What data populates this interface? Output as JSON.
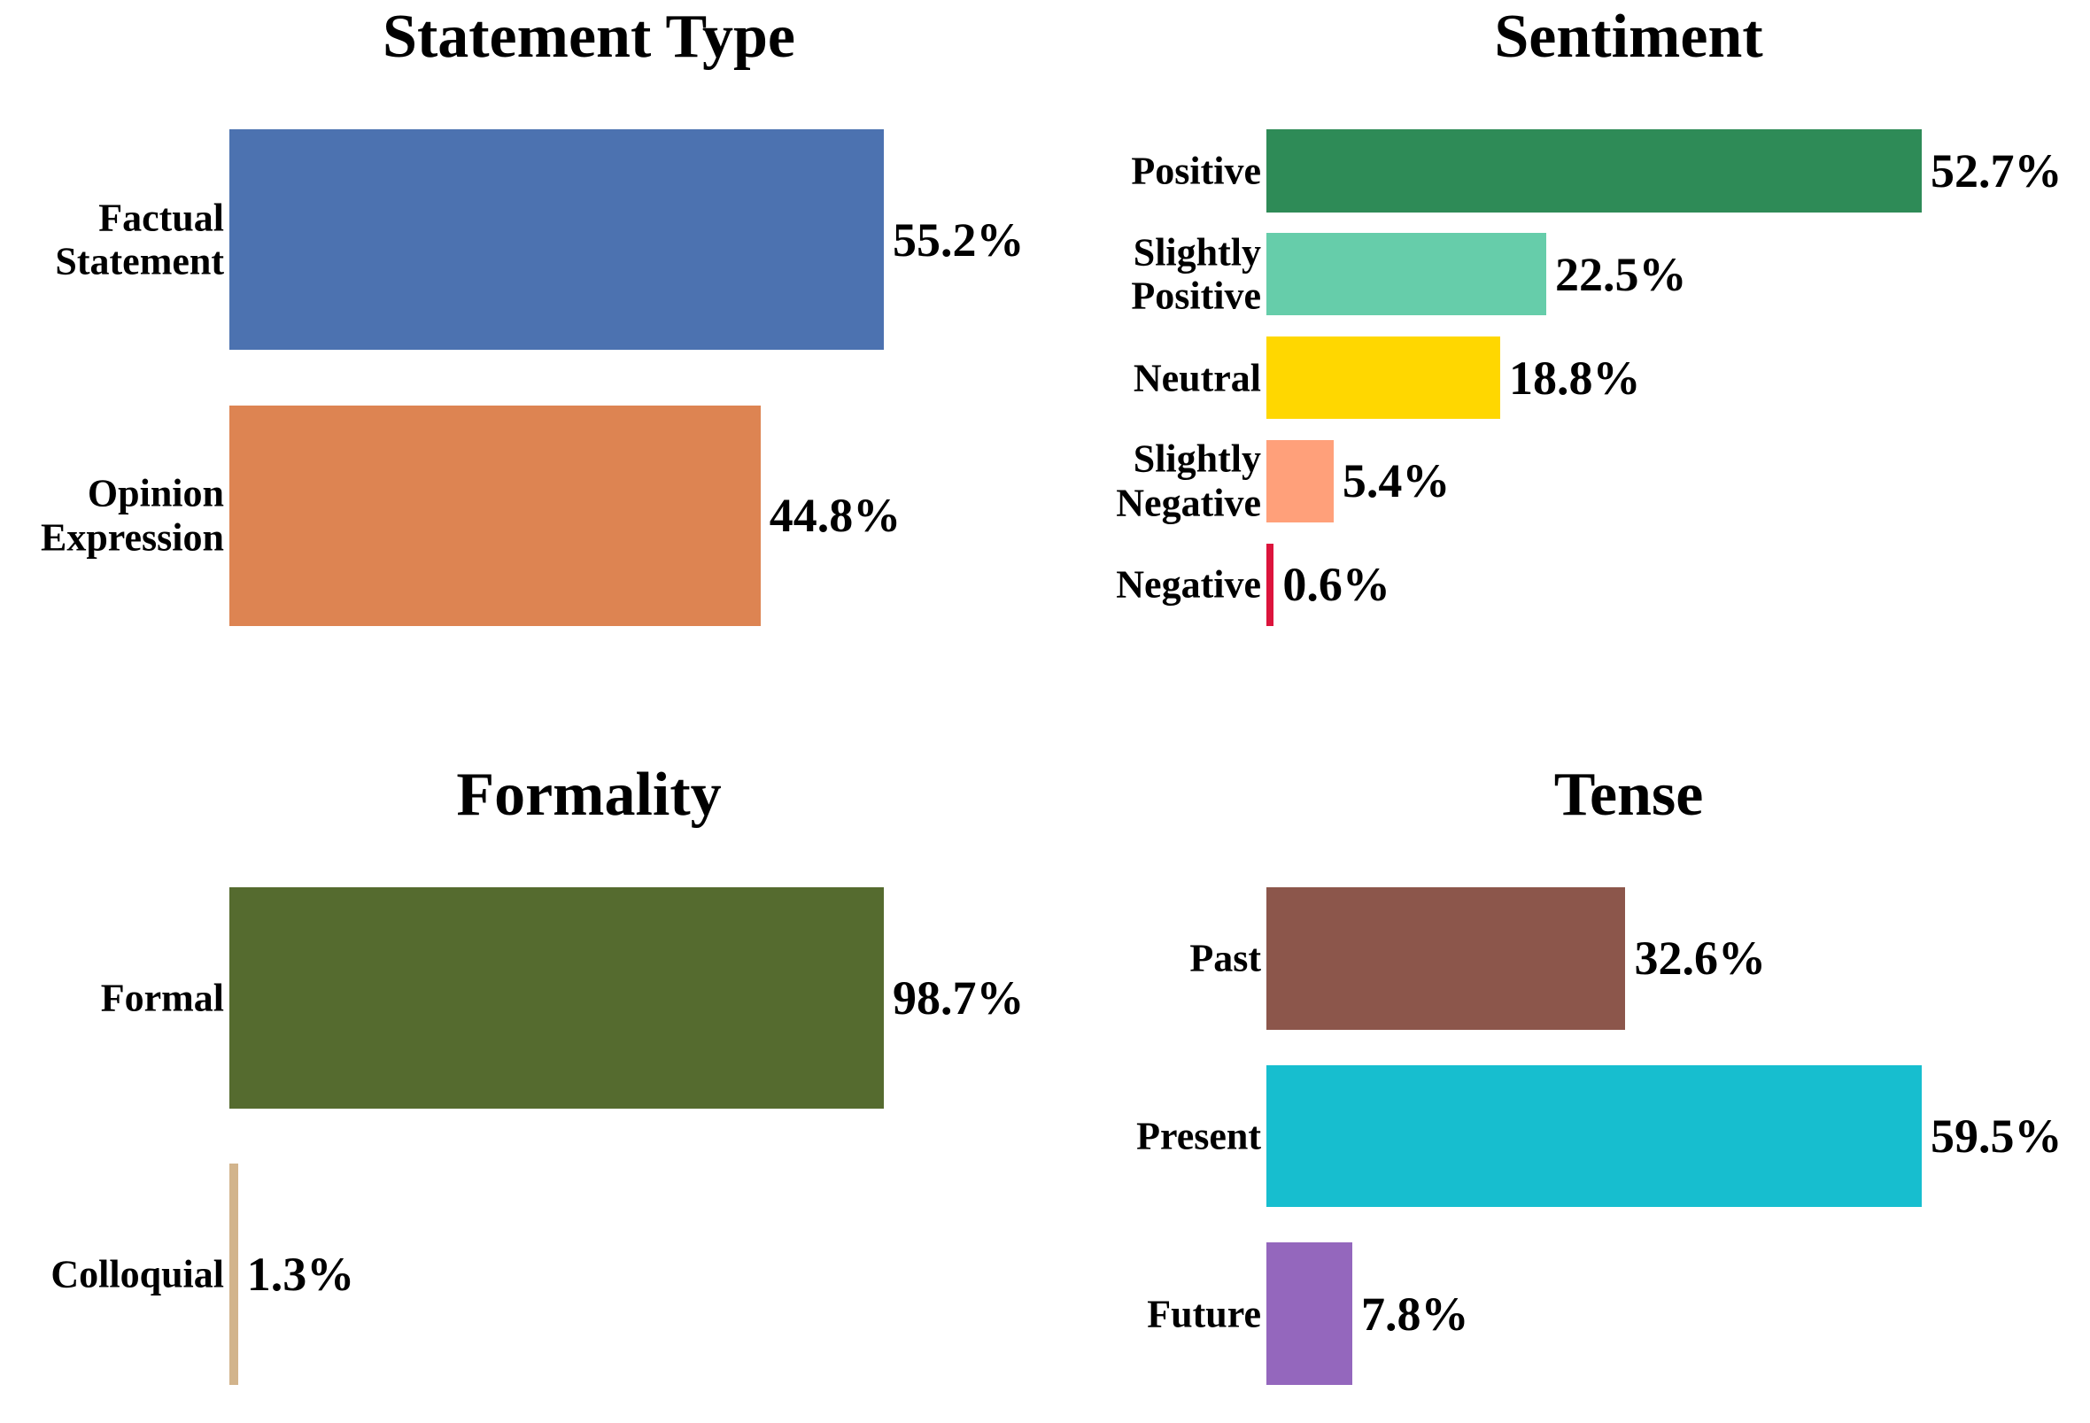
{
  "chart_data": [
    {
      "type": "bar",
      "title": "Statement Type",
      "categories": [
        "Factual\nStatement",
        "Opinion\nExpression"
      ],
      "values": [
        55.2,
        44.8
      ],
      "value_labels": [
        "55.2%",
        "44.8%"
      ],
      "colors": [
        "#4c72b0",
        "#dd8452"
      ],
      "xlim": [
        0,
        55.2
      ]
    },
    {
      "type": "bar",
      "title": "Sentiment",
      "categories": [
        "Positive",
        "Slightly\nPositive",
        "Neutral",
        "Slightly\nNegative",
        "Negative"
      ],
      "values": [
        52.7,
        22.5,
        18.8,
        5.4,
        0.6
      ],
      "value_labels": [
        "52.7%",
        "22.5%",
        "18.8%",
        "5.4%",
        "0.6%"
      ],
      "colors": [
        "#2e8b57",
        "#66cdaa",
        "#ffd700",
        "#ffa07a",
        "#dc143c"
      ],
      "xlim": [
        0,
        52.7
      ]
    },
    {
      "type": "bar",
      "title": "Formality",
      "categories": [
        "Formal",
        "Colloquial"
      ],
      "values": [
        98.7,
        1.3
      ],
      "value_labels": [
        "98.7%",
        "1.3%"
      ],
      "colors": [
        "#556b2f",
        "#d2b48c"
      ],
      "xlim": [
        0,
        98.7
      ]
    },
    {
      "type": "bar",
      "title": "Tense",
      "categories": [
        "Past",
        "Present",
        "Future"
      ],
      "values": [
        32.6,
        59.5,
        7.8
      ],
      "value_labels": [
        "32.6%",
        "59.5%",
        "7.8%"
      ],
      "colors": [
        "#8c564b",
        "#17becf",
        "#9467bd"
      ],
      "xlim": [
        0,
        59.5
      ]
    }
  ]
}
